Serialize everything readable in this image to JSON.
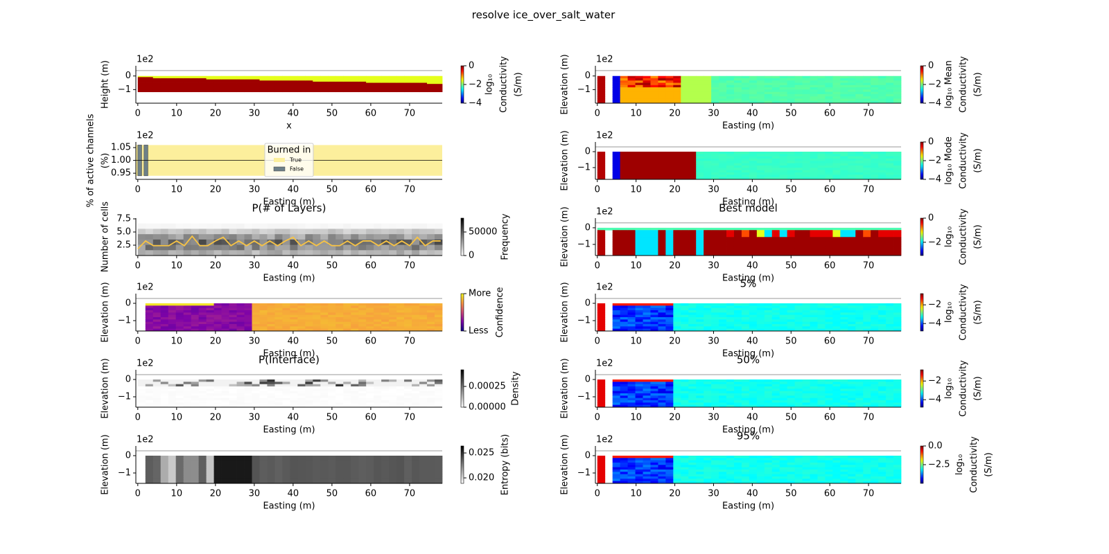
{
  "title": "resolve ice_over_salt_water",
  "chart_data": [
    {
      "type": "heatmap",
      "xlabel": "x",
      "ylabel": "Height (m)",
      "offset_text": "1e2",
      "xlim": [
        -0.5,
        78.4
      ],
      "xticks": [
        0,
        10,
        20,
        30,
        40,
        50,
        60,
        70
      ],
      "ylim": [
        -2.0,
        0.75
      ],
      "yticks": [
        0,
        {
          "value": -1,
          "label": "−1"
        }
      ],
      "hline": 0.4,
      "colorbar": {
        "cmap": "jet",
        "label": [
          "log₁₀",
          "Conductivity",
          "(S/m)"
        ],
        "lim": [
          -4,
          0
        ],
        "ticks": [
          0,
          {
            "value": -2,
            "label": "−2"
          },
          {
            "value": -4,
            "label": "−4"
          }
        ]
      }
    },
    {
      "type": "bar",
      "xlabel": "Easting (m)",
      "ylabel": [
        "% of active channels",
        "(%)"
      ],
      "offset_text": "1e2",
      "xlim": [
        -0.5,
        78.4
      ],
      "xticks": [
        0,
        10,
        20,
        30,
        40,
        50,
        60,
        70
      ],
      "ylim": [
        0.926,
        1.072
      ],
      "yticks": [
        0.95,
        {
          "value": 1.0,
          "label": "1.00"
        },
        1.05
      ],
      "hline": 1.0,
      "base": 0.94,
      "legend": {
        "title": "Burned in",
        "loc": "upper center"
      },
      "series": [
        {
          "name": "True",
          "color": "#fcef9c",
          "x_start": [
            -0.5
          ],
          "x_end": [
            78.4
          ],
          "values": [
            1.06
          ]
        },
        {
          "name": "False",
          "color": "#6e8088",
          "x_start": [
            0.0,
            1.6
          ],
          "x_end": [
            1.0,
            2.6
          ],
          "values": [
            1.06,
            1.06
          ]
        }
      ]
    },
    {
      "type": "heatmap",
      "title": "P(# of Layers)",
      "xlabel": "Easting (m)",
      "ylabel": "Number of cells",
      "xlim": [
        -0.5,
        78.4
      ],
      "xticks": [
        0,
        10,
        20,
        30,
        40,
        50,
        60,
        70
      ],
      "ylim": [
        0.53,
        7.63
      ],
      "yticks": [
        2.5,
        {
          "value": 5,
          "label": "5.0"
        },
        7.5
      ],
      "series": [
        {
          "color": "#f7c344",
          "x": [
            0,
            2,
            4,
            6,
            8,
            10,
            12,
            14,
            16,
            18,
            20,
            22,
            24,
            26,
            28,
            30,
            32,
            34,
            36,
            38,
            40,
            42,
            44,
            46,
            48,
            50,
            52,
            54,
            56,
            58,
            60,
            62,
            64,
            66,
            68,
            70,
            72,
            74,
            76,
            78
          ],
          "values": [
            1.8,
            3.3,
            2.4,
            2.4,
            2.4,
            3.3,
            2.4,
            4.2,
            2.4,
            2.4,
            3.3,
            4.0,
            2.4,
            3.3,
            2.4,
            3.3,
            2.4,
            3.3,
            2.4,
            3.3,
            4.0,
            2.4,
            3.3,
            2.4,
            3.3,
            2.4,
            2.4,
            3.3,
            2.4,
            3.3,
            3.3,
            2.4,
            3.3,
            2.4,
            3.3,
            2.4,
            4.0,
            2.4,
            3.3,
            3.3
          ]
        }
      ],
      "colorbar": {
        "cmap": "gray_r",
        "label": [
          "Frequency"
        ],
        "lim": [
          0,
          79400
        ],
        "ticks": [
          0,
          50000
        ]
      }
    },
    {
      "type": "heatmap",
      "xlabel": "Easting (m)",
      "ylabel": "Elevation (m)",
      "offset_text": "1e2",
      "xlim": [
        -0.5,
        78.4
      ],
      "xticks": [
        0,
        10,
        20,
        30,
        40,
        50,
        60,
        70
      ],
      "ylim": [
        -1.6,
        0.56
      ],
      "yticks": [
        0,
        {
          "value": -1,
          "label": "−1"
        }
      ],
      "hline": 0.28,
      "colorbar": {
        "cmap": "plasma",
        "label": [
          "Confidence"
        ],
        "lim": [
          0,
          1
        ],
        "ticks": [
          {
            "value": 0,
            "label": "Less"
          },
          {
            "value": 1,
            "label": "More"
          }
        ]
      }
    },
    {
      "type": "heatmap",
      "title": "P(Interface)",
      "xlabel": "Easting (m)",
      "ylabel": "Elevation (m)",
      "offset_text": "1e2",
      "xlim": [
        -0.5,
        78.4
      ],
      "xticks": [
        0,
        10,
        20,
        30,
        40,
        50,
        60,
        70
      ],
      "ylim": [
        -1.6,
        0.56
      ],
      "yticks": [
        0,
        {
          "value": -1,
          "label": "−1"
        }
      ],
      "hline": 0.28,
      "colorbar": {
        "cmap": "gray_r",
        "label": [
          "Density"
        ],
        "lim": [
          0,
          0.00045
        ],
        "ticks": [
          {
            "value": 0,
            "label": "0.00000"
          },
          {
            "value": 0.00025,
            "label": "0.00025"
          }
        ]
      }
    },
    {
      "type": "heatmap",
      "xlabel": "Easting (m)",
      "ylabel": "Elevation (m)",
      "offset_text": "1e2",
      "xlim": [
        -0.5,
        78.4
      ],
      "xticks": [
        0,
        10,
        20,
        30,
        40,
        50,
        60,
        70
      ],
      "ylim": [
        -1.6,
        0.56
      ],
      "yticks": [
        0,
        {
          "value": -1,
          "label": "−1"
        }
      ],
      "hline": 0.28,
      "colorbar": {
        "cmap": "gray_r",
        "label": [
          "Entropy (bits)"
        ],
        "lim": [
          0.0189,
          0.0264
        ],
        "ticks": [
          {
            "value": 0.02,
            "label": "0.020"
          },
          0.025
        ]
      }
    },
    {
      "type": "heatmap",
      "xlabel": "Easting (m)",
      "ylabel": "Elevation (m)",
      "offset_text": "1e2",
      "xlim": [
        -0.5,
        78.4
      ],
      "xticks": [
        0,
        10,
        20,
        30,
        40,
        50,
        60,
        70
      ],
      "ylim": [
        -2.0,
        0.75
      ],
      "yticks": [
        0,
        {
          "value": -1,
          "label": "−1"
        }
      ],
      "hline": 0.4,
      "colorbar": {
        "cmap": "jet",
        "label": [
          "log₁₀ Mean",
          "Conductivity",
          "(S/m)"
        ],
        "lim": [
          -4,
          0
        ],
        "ticks": [
          0,
          {
            "value": -2,
            "label": "−2"
          },
          {
            "value": -4,
            "label": "−4"
          }
        ]
      }
    },
    {
      "type": "heatmap",
      "xlabel": "Easting (m)",
      "ylabel": "Elevation (m)",
      "offset_text": "1e2",
      "xlim": [
        -0.5,
        78.4
      ],
      "xticks": [
        0,
        10,
        20,
        30,
        40,
        50,
        60,
        70
      ],
      "ylim": [
        -1.74,
        0.61
      ],
      "yticks": [
        0,
        {
          "value": -1,
          "label": "−1"
        }
      ],
      "hline": 0.3,
      "colorbar": {
        "cmap": "jet",
        "label": [
          "log₁₀ Mode",
          "Conductivity",
          "(S/m)"
        ],
        "lim": [
          -4,
          0
        ],
        "ticks": [
          0,
          {
            "value": -2,
            "label": "−2"
          },
          {
            "value": -4,
            "label": "−4"
          }
        ]
      }
    },
    {
      "type": "heatmap",
      "title": "Best model",
      "xlabel": "Easting (m)",
      "ylabel": "Elevation (m)",
      "offset_text": "1e2",
      "xlim": [
        -0.5,
        78.4
      ],
      "xticks": [
        0,
        10,
        20,
        30,
        40,
        50,
        60,
        70
      ],
      "ylim": [
        -1.67,
        0.58
      ],
      "yticks": [
        0,
        {
          "value": -1,
          "label": "−1"
        }
      ],
      "hline": 0.3,
      "colorbar": {
        "cmap": "jet",
        "label": [
          "log₁₀",
          "Conductivity",
          "(S/m)"
        ],
        "lim": [
          -3.1,
          0
        ],
        "ticks": [
          0,
          {
            "value": -2,
            "label": "−2"
          }
        ]
      }
    },
    {
      "type": "heatmap",
      "title": "5%",
      "xlabel": "Easting (m)",
      "ylabel": "Elevation (m)",
      "offset_text": "1e2",
      "xlim": [
        -0.5,
        78.4
      ],
      "xticks": [
        0,
        10,
        20,
        30,
        40,
        50,
        60,
        70
      ],
      "ylim": [
        -1.6,
        0.56
      ],
      "yticks": [
        0,
        {
          "value": -1,
          "label": "−1"
        }
      ],
      "hline": 0.28,
      "colorbar": {
        "cmap": "jet",
        "label": [
          "log₁₀",
          "Conductivity",
          "(S/m)"
        ],
        "lim": [
          -4.8,
          -0.8
        ],
        "ticks": [
          {
            "value": -2,
            "label": "−2"
          },
          {
            "value": -4,
            "label": "−4"
          }
        ]
      }
    },
    {
      "type": "heatmap",
      "title": "50%",
      "xlabel": "Easting (m)",
      "ylabel": "Elevation (m)",
      "offset_text": "1e2",
      "xlim": [
        -0.5,
        78.4
      ],
      "xticks": [
        0,
        10,
        20,
        30,
        40,
        50,
        60,
        70
      ],
      "ylim": [
        -1.6,
        0.56
      ],
      "yticks": [
        0,
        {
          "value": -1,
          "label": "−1"
        }
      ],
      "hline": 0.28,
      "colorbar": {
        "cmap": "jet",
        "label": [
          "log₁₀",
          "Conductivity",
          "(S/m)"
        ],
        "lim": [
          -4.8,
          -0.8
        ],
        "ticks": [
          {
            "value": -2,
            "label": "−2"
          },
          {
            "value": -4,
            "label": "−4"
          }
        ]
      }
    },
    {
      "type": "heatmap",
      "title": "95%",
      "xlabel": "Easting (m)",
      "ylabel": "Elevation (m)",
      "offset_text": "1e2",
      "xlim": [
        -0.5,
        78.4
      ],
      "xticks": [
        0,
        10,
        20,
        30,
        40,
        50,
        60,
        70
      ],
      "ylim": [
        -1.6,
        0.56
      ],
      "yticks": [
        0,
        {
          "value": -1,
          "label": "−1"
        }
      ],
      "hline": 0.28,
      "colorbar": {
        "cmap": "jet",
        "label": [
          "log₁₀",
          "Conductivity",
          "(S/m)"
        ],
        "lim": [
          -5,
          0
        ],
        "ticks": [
          {
            "value": 0,
            "label": "0.0"
          },
          {
            "value": -2.5,
            "label": "−2.5"
          }
        ]
      }
    }
  ]
}
